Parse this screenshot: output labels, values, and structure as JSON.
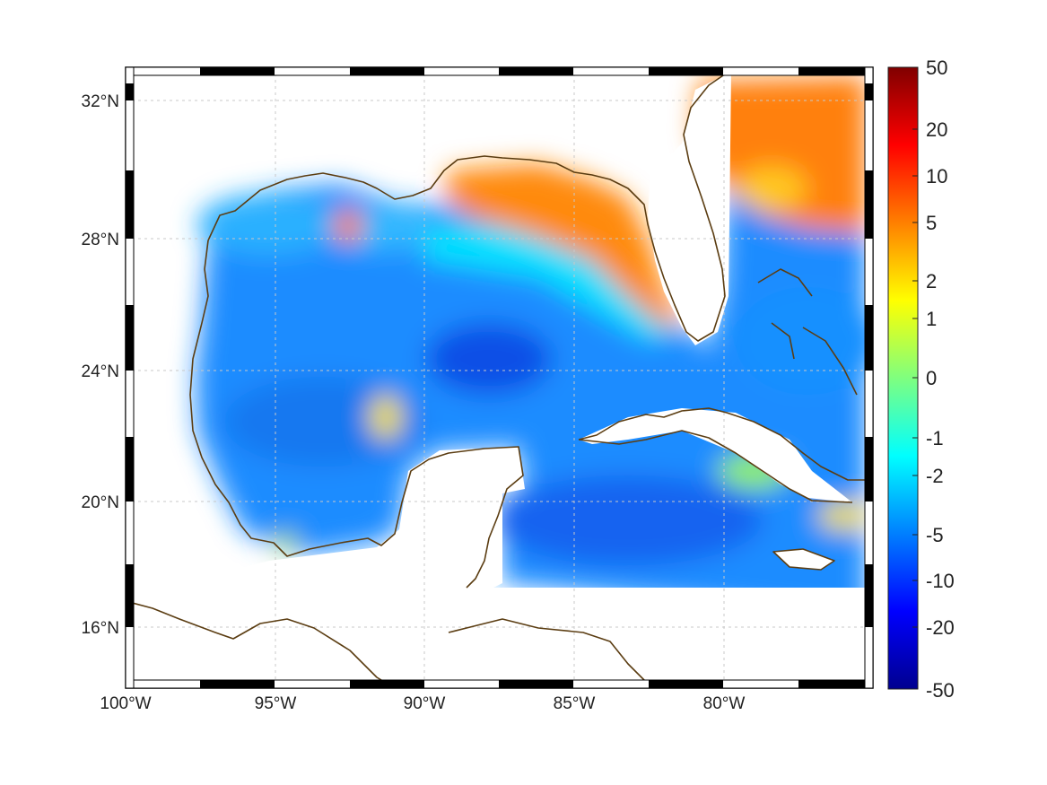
{
  "map": {
    "lon_range": [
      -100,
      -75
    ],
    "lat_range": [
      14.3,
      32.9
    ],
    "projection": "mercator",
    "grid": true,
    "lon_ticks": [
      {
        "value": -100,
        "label": "100°W"
      },
      {
        "value": -95,
        "label": "95°W"
      },
      {
        "value": -90,
        "label": "90°W"
      },
      {
        "value": -85,
        "label": "85°W"
      },
      {
        "value": -80,
        "label": "80°W"
      }
    ],
    "lat_ticks": [
      {
        "value": 32,
        "label": "32°N"
      },
      {
        "value": 28,
        "label": "28°N"
      },
      {
        "value": 24,
        "label": "24°N"
      },
      {
        "value": 20,
        "label": "20°N"
      },
      {
        "value": 16,
        "label": "16°N"
      }
    ],
    "coastline_color": "#5b3d12",
    "frame_color": "#000000"
  },
  "colorbar": {
    "colormap": "jet",
    "scale": "symmetric-log",
    "ticks": [
      "50",
      "20",
      "10",
      "5",
      "2",
      "1",
      "0",
      "-1",
      "-2",
      "-5",
      "-10",
      "-20",
      "-50"
    ]
  }
}
